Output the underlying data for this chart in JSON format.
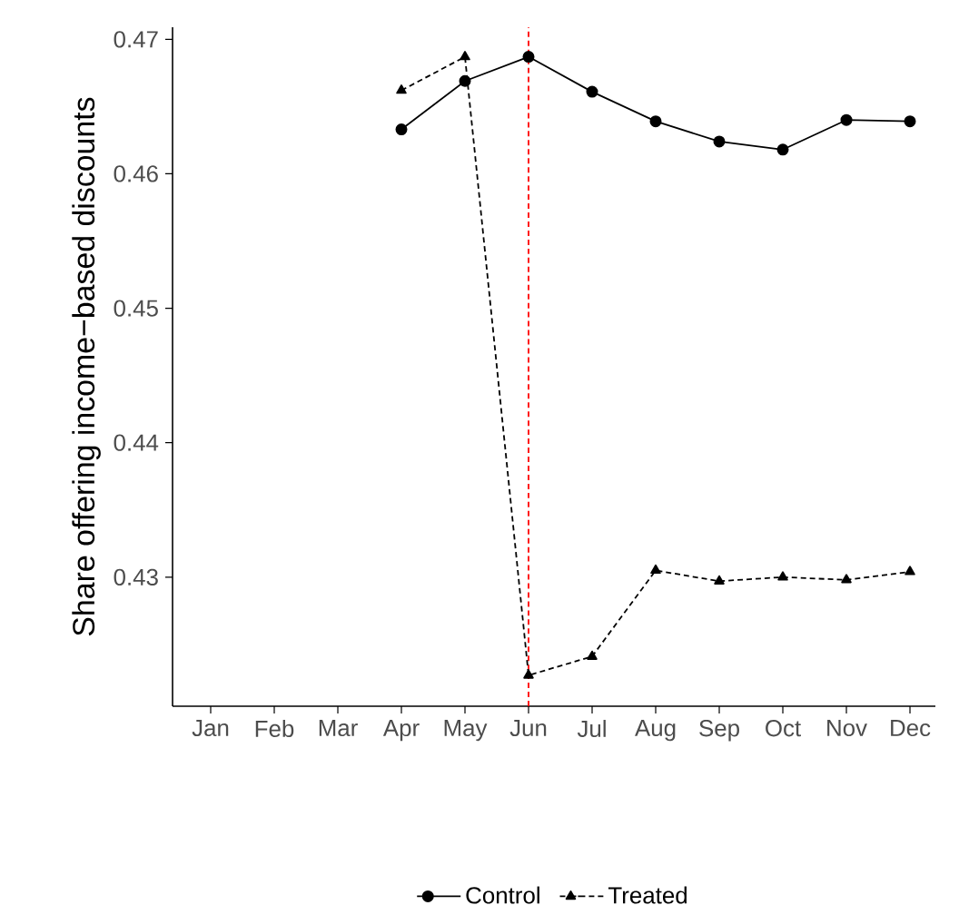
{
  "chart_data": {
    "type": "line",
    "ylabel": "Share offering income−based discounts",
    "categories": [
      "Jan",
      "Feb",
      "Mar",
      "Apr",
      "May",
      "Jun",
      "Jul",
      "Aug",
      "Sep",
      "Oct",
      "Nov",
      "Dec"
    ],
    "series": [
      {
        "name": "Control",
        "color": "#000000",
        "marker": "circle",
        "line_style": "solid",
        "values": [
          null,
          null,
          null,
          0.4633,
          0.4669,
          0.4687,
          0.4661,
          0.4639,
          0.4624,
          0.4618,
          0.464,
          0.4639
        ]
      },
      {
        "name": "Treated",
        "color": "#000000",
        "marker": "triangle",
        "line_style": "dashed",
        "values": [
          null,
          null,
          null,
          0.4662,
          0.4687,
          0.4227,
          0.4241,
          0.4305,
          0.4297,
          0.43,
          0.4298,
          0.4304
        ]
      }
    ],
    "ylim": [
      0.4204,
      0.4709
    ],
    "yticks": [
      0.43,
      0.44,
      0.45,
      0.46,
      0.47
    ],
    "ref_lines": [
      {
        "axis": "x",
        "value": "Jun",
        "color": "#ff0000",
        "line_style": "dashed"
      }
    ],
    "grid": false,
    "legend": "bottom"
  }
}
